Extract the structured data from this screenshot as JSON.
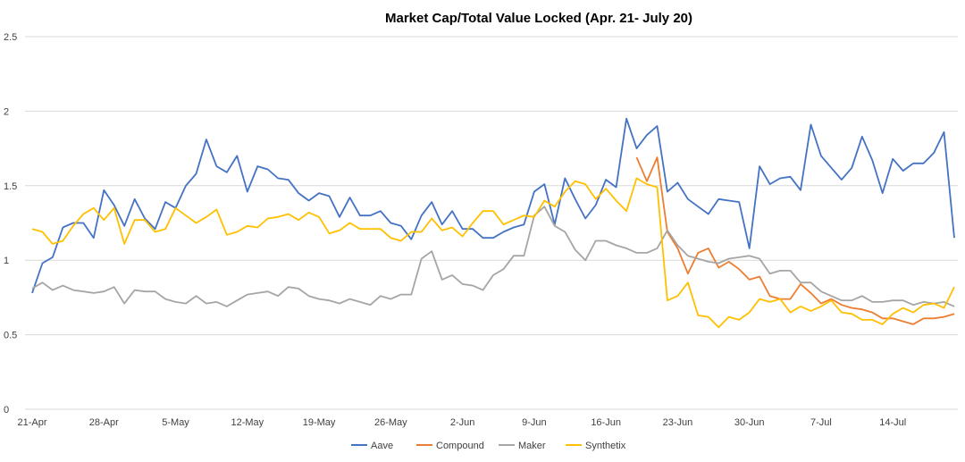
{
  "chart_data": {
    "type": "line",
    "title": "Market Cap/Total Value Locked (Apr. 21- July 20)",
    "xlabel": "",
    "ylabel": "",
    "ylim": [
      0,
      2.5
    ],
    "y_ticks": [
      "0",
      "0.5",
      "1",
      "1.5",
      "2",
      "2.5"
    ],
    "y_tick_values": [
      0,
      0.5,
      1,
      1.5,
      2,
      2.5
    ],
    "x_days": 91,
    "x_tick_labels": [
      "21-Apr",
      "28-Apr",
      "5-May",
      "12-May",
      "19-May",
      "26-May",
      "2-Jun",
      "9-Jun",
      "16-Jun",
      "23-Jun",
      "30-Jun",
      "7-Jul",
      "14-Jul"
    ],
    "x_tick_day_index": [
      0,
      7,
      14,
      21,
      28,
      35,
      42,
      49,
      56,
      63,
      70,
      77,
      84
    ],
    "grid": true,
    "legend_position": "bottom",
    "series": [
      {
        "name": "Aave",
        "color": "#4472C4",
        "start_day_index": 0,
        "values": [
          0.78,
          0.98,
          1.02,
          1.22,
          1.25,
          1.25,
          1.15,
          1.47,
          1.37,
          1.23,
          1.41,
          1.28,
          1.21,
          1.39,
          1.35,
          1.5,
          1.58,
          1.81,
          1.63,
          1.59,
          1.7,
          1.46,
          1.63,
          1.61,
          1.55,
          1.54,
          1.45,
          1.4,
          1.45,
          1.43,
          1.29,
          1.42,
          1.3,
          1.3,
          1.33,
          1.25,
          1.23,
          1.14,
          1.3,
          1.39,
          1.24,
          1.33,
          1.21,
          1.21,
          1.15,
          1.15,
          1.19,
          1.22,
          1.24,
          1.46,
          1.51,
          1.24,
          1.55,
          1.41,
          1.28,
          1.37,
          1.54,
          1.49,
          1.95,
          1.75,
          1.84,
          1.9,
          1.46,
          1.52,
          1.41,
          1.36,
          1.31,
          1.41,
          1.4,
          1.39,
          1.08,
          1.63,
          1.51,
          1.55,
          1.56,
          1.47,
          1.91,
          1.7,
          1.62,
          1.54,
          1.62,
          1.83,
          1.67,
          1.45,
          1.68,
          1.6,
          1.65,
          1.65,
          1.72,
          1.86,
          1.15
        ]
      },
      {
        "name": "Compound",
        "color": "#ED7D31",
        "start_day_index": 59,
        "values": [
          1.69,
          1.53,
          1.69,
          1.19,
          1.08,
          0.91,
          1.05,
          1.08,
          0.95,
          0.99,
          0.94,
          0.87,
          0.89,
          0.76,
          0.74,
          0.74,
          0.84,
          0.78,
          0.71,
          0.74,
          0.7,
          0.68,
          0.67,
          0.65,
          0.61,
          0.61,
          0.59,
          0.57,
          0.61,
          0.61,
          0.62,
          0.64
        ]
      },
      {
        "name": "Maker",
        "color": "#A5A5A5",
        "start_day_index": 0,
        "values": [
          0.81,
          0.85,
          0.8,
          0.83,
          0.8,
          0.79,
          0.78,
          0.79,
          0.82,
          0.71,
          0.8,
          0.79,
          0.79,
          0.74,
          0.72,
          0.71,
          0.76,
          0.71,
          0.72,
          0.69,
          0.73,
          0.77,
          0.78,
          0.79,
          0.76,
          0.82,
          0.81,
          0.76,
          0.74,
          0.73,
          0.71,
          0.74,
          0.72,
          0.7,
          0.76,
          0.74,
          0.77,
          0.77,
          1.01,
          1.06,
          0.87,
          0.9,
          0.84,
          0.83,
          0.8,
          0.9,
          0.94,
          1.03,
          1.03,
          1.3,
          1.36,
          1.23,
          1.19,
          1.07,
          1.0,
          1.13,
          1.13,
          1.1,
          1.08,
          1.05,
          1.05,
          1.08,
          1.2,
          1.1,
          1.03,
          1.01,
          0.99,
          0.98,
          1.01,
          1.02,
          1.03,
          1.01,
          0.91,
          0.93,
          0.93,
          0.85,
          0.85,
          0.79,
          0.76,
          0.73,
          0.73,
          0.76,
          0.72,
          0.72,
          0.73,
          0.73,
          0.7,
          0.72,
          0.71,
          0.72,
          0.69
        ]
      },
      {
        "name": "Synthetix",
        "color": "#FFC000",
        "start_day_index": 0,
        "values": [
          1.21,
          1.19,
          1.11,
          1.13,
          1.23,
          1.31,
          1.35,
          1.27,
          1.35,
          1.11,
          1.27,
          1.27,
          1.19,
          1.21,
          1.35,
          1.3,
          1.25,
          1.29,
          1.34,
          1.17,
          1.19,
          1.23,
          1.22,
          1.28,
          1.29,
          1.31,
          1.27,
          1.32,
          1.29,
          1.18,
          1.2,
          1.25,
          1.21,
          1.21,
          1.21,
          1.15,
          1.13,
          1.19,
          1.19,
          1.28,
          1.2,
          1.22,
          1.16,
          1.25,
          1.33,
          1.33,
          1.24,
          1.27,
          1.3,
          1.29,
          1.4,
          1.36,
          1.46,
          1.53,
          1.51,
          1.41,
          1.48,
          1.4,
          1.33,
          1.55,
          1.51,
          1.49,
          0.73,
          0.76,
          0.85,
          0.63,
          0.62,
          0.55,
          0.62,
          0.6,
          0.65,
          0.74,
          0.72,
          0.74,
          0.65,
          0.69,
          0.66,
          0.69,
          0.73,
          0.65,
          0.64,
          0.6,
          0.6,
          0.57,
          0.64,
          0.68,
          0.65,
          0.7,
          0.71,
          0.68,
          0.82
        ]
      }
    ]
  }
}
